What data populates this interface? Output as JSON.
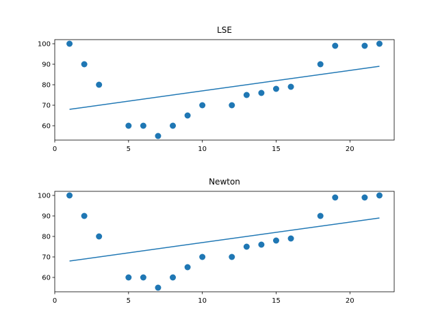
{
  "chart_data": [
    {
      "type": "scatter",
      "title": "LSE",
      "xlabel": "",
      "ylabel": "",
      "xlim": [
        0,
        23
      ],
      "ylim": [
        53,
        102
      ],
      "xticks": [
        0,
        5,
        10,
        15,
        20
      ],
      "yticks": [
        60,
        70,
        80,
        90,
        100
      ],
      "grid": false,
      "color": "#1f77b4",
      "points": {
        "x": [
          1,
          2,
          3,
          5,
          6,
          7,
          8,
          9,
          10,
          12,
          13,
          14,
          15,
          16,
          18,
          19,
          21,
          22
        ],
        "y": [
          100,
          90,
          80,
          60,
          60,
          55,
          60,
          65,
          70,
          70,
          75,
          76,
          78,
          79,
          90,
          99,
          99,
          100
        ]
      },
      "fit_line": {
        "x": [
          1,
          22
        ],
        "y": [
          68,
          89
        ]
      }
    },
    {
      "type": "scatter",
      "title": "Newton",
      "xlabel": "",
      "ylabel": "",
      "xlim": [
        0,
        23
      ],
      "ylim": [
        53,
        102
      ],
      "xticks": [
        0,
        5,
        10,
        15,
        20
      ],
      "yticks": [
        60,
        70,
        80,
        90,
        100
      ],
      "grid": false,
      "color": "#1f77b4",
      "points": {
        "x": [
          1,
          2,
          3,
          5,
          6,
          7,
          8,
          9,
          10,
          12,
          13,
          14,
          15,
          16,
          18,
          19,
          21,
          22
        ],
        "y": [
          100,
          90,
          80,
          60,
          60,
          55,
          60,
          65,
          70,
          70,
          75,
          76,
          78,
          79,
          90,
          99,
          99,
          100
        ]
      },
      "fit_line": {
        "x": [
          1,
          22
        ],
        "y": [
          68,
          89
        ]
      }
    }
  ]
}
